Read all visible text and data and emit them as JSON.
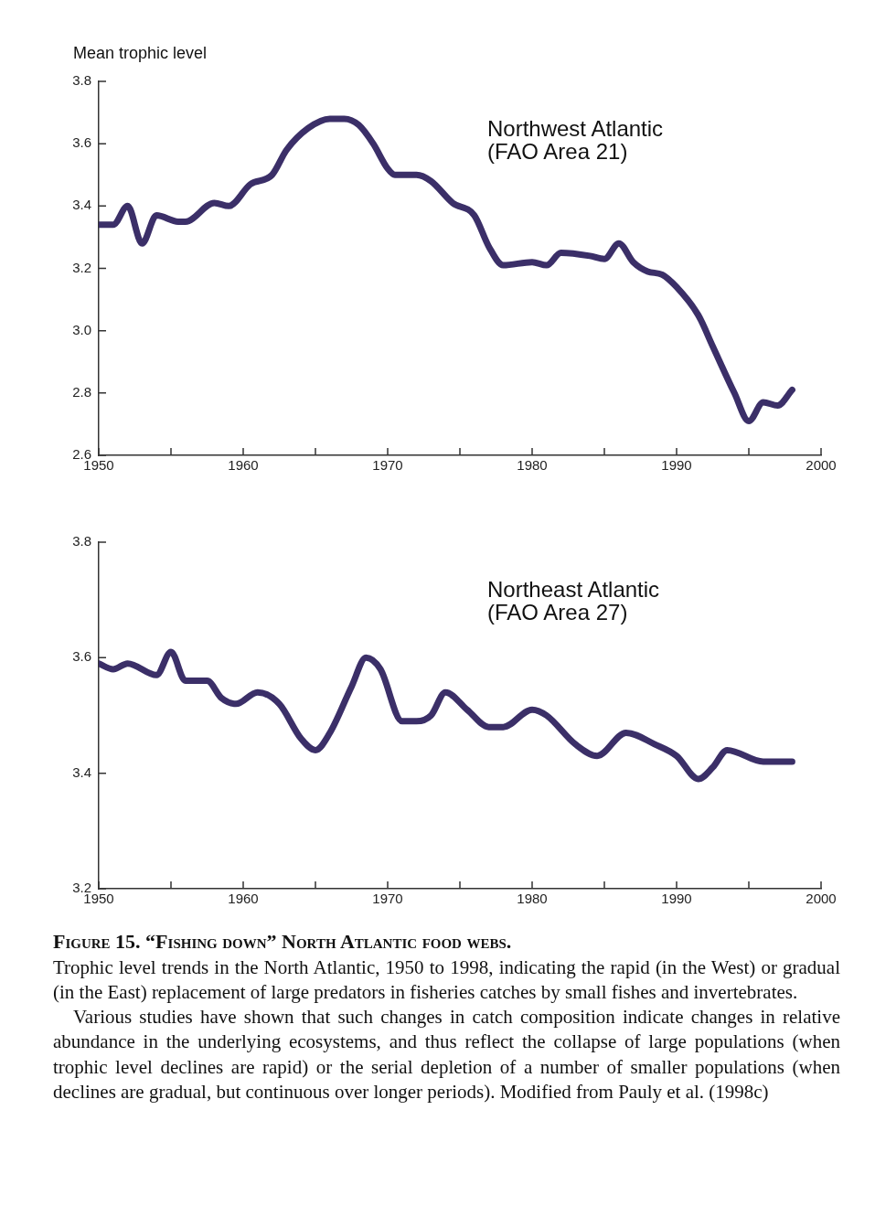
{
  "chart_data": [
    {
      "type": "line",
      "ylabel": "Mean trophic level",
      "annotations": [
        "Northwest Atlantic (FAO Area 21)"
      ],
      "marker": "none",
      "grid": false,
      "legend": false,
      "x": [
        1950,
        1951,
        1952,
        1953,
        1954,
        1955.5,
        1956,
        1958,
        1959,
        1960.5,
        1962,
        1963,
        1964.5,
        1966,
        1967,
        1968,
        1969,
        1970,
        1970.5,
        1972,
        1973,
        1974.5,
        1976,
        1977,
        1978,
        1980,
        1981,
        1982,
        1984,
        1985,
        1986,
        1987,
        1988,
        1989,
        1990,
        1991.5,
        1992.5,
        1994,
        1995,
        1996,
        1997,
        1998
      ],
      "series": [
        {
          "color": "#3b2f68",
          "values": [
            3.34,
            3.34,
            3.4,
            3.28,
            3.37,
            3.35,
            3.35,
            3.41,
            3.4,
            3.47,
            3.5,
            3.58,
            3.65,
            3.68,
            3.68,
            3.66,
            3.6,
            3.52,
            3.5,
            3.5,
            3.48,
            3.41,
            3.37,
            3.27,
            3.21,
            3.22,
            3.21,
            3.25,
            3.24,
            3.23,
            3.28,
            3.22,
            3.19,
            3.18,
            3.14,
            3.05,
            2.95,
            2.8,
            2.71,
            2.77,
            2.76,
            2.81
          ]
        }
      ],
      "xlim": [
        1950,
        2000
      ],
      "xticks": [
        1950,
        {
          "value": 1955,
          "label": null
        },
        1960,
        {
          "value": 1965,
          "label": null
        },
        1970,
        {
          "value": 1975,
          "label": null
        },
        1980,
        {
          "value": 1985,
          "label": null
        },
        1990,
        {
          "value": 1995,
          "label": null
        },
        2000
      ],
      "ylim": [
        2.6,
        3.8
      ],
      "yticks": [
        2.6,
        2.8,
        {
          "value": 3,
          "label": "3.0"
        },
        3.2,
        3.4,
        3.6,
        3.8
      ]
    },
    {
      "type": "line",
      "annotations": [
        "Northeast Atlantic (FAO Area 27)",
        "Figure 15. “Fishing down” North Atlantic food webs.",
        "Trophic level trends in the North Atlantic, 1950 to 1998, indicating the rapid (in the West) or gradual (in the East) replacement of large predators in fisheries catches by small fishes and invertebrates.",
        "Various studies have shown that such changes in catch composition indicate changes in relative abundance in the underlying ecosystems, and thus reflect the collapse of large populations (when trophic level declines are rapid) or the serial depletion of a number of smaller populations (when declines are gradual, but continuous over longer periods). Modified from Pauly et al. (1998c)"
      ],
      "marker": "none",
      "grid": false,
      "legend": false,
      "x": [
        1950,
        1951,
        1952,
        1954,
        1955,
        1956,
        1957.5,
        1958.5,
        1959.5,
        1961,
        1962.5,
        1964,
        1965,
        1966,
        1967.5,
        1968.5,
        1969.5,
        1971,
        1972,
        1973,
        1974,
        1975.5,
        1977,
        1978,
        1980,
        1981,
        1983,
        1984.5,
        1986.5,
        1988.5,
        1990,
        1991.5,
        1992.5,
        1993.5,
        1996,
        1998
      ],
      "series": [
        {
          "color": "#3b2f68",
          "values": [
            3.59,
            3.58,
            3.59,
            3.57,
            3.61,
            3.56,
            3.56,
            3.53,
            3.52,
            3.54,
            3.52,
            3.46,
            3.44,
            3.47,
            3.55,
            3.6,
            3.58,
            3.49,
            3.49,
            3.5,
            3.54,
            3.51,
            3.48,
            3.48,
            3.51,
            3.5,
            3.45,
            3.43,
            3.47,
            3.45,
            3.43,
            3.39,
            3.41,
            3.44,
            3.42,
            3.42
          ]
        }
      ],
      "xlim": [
        1950,
        2000
      ],
      "xticks": [
        1950,
        {
          "value": 1955,
          "label": null
        },
        1960,
        {
          "value": 1965,
          "label": null
        },
        1970,
        {
          "value": 1975,
          "label": null
        },
        1980,
        {
          "value": 1985,
          "label": null
        },
        1990,
        {
          "value": 1995,
          "label": null
        },
        2000
      ],
      "ylim": [
        3.2,
        3.8
      ],
      "yticks": [
        3.2,
        3.4,
        3.6,
        3.8
      ]
    }
  ]
}
